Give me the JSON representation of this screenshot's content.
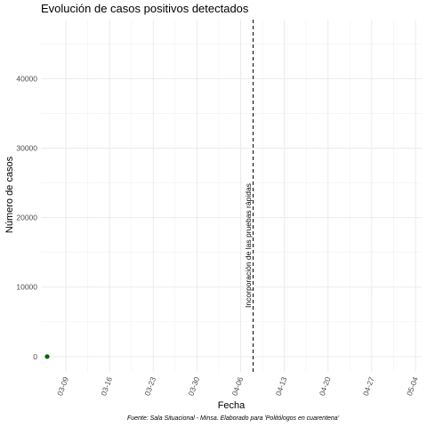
{
  "chart_data": {
    "type": "scatter",
    "title": "Evolución de casos positivos detectados",
    "xlabel": "Fecha",
    "ylabel": "Número de casos",
    "caption": "Fuente: Sala Situacional - Minsa. Elaborado para 'Politólogos en cuarentena'",
    "x_ticks": [
      "03-09",
      "03-16",
      "03-23",
      "03-30",
      "04-06",
      "04-13",
      "04-20",
      "04-27",
      "05-04"
    ],
    "x_tick_dates": [
      "2020-03-09",
      "2020-03-16",
      "2020-03-23",
      "2020-03-30",
      "2020-04-06",
      "2020-04-13",
      "2020-04-20",
      "2020-04-27",
      "2020-05-04"
    ],
    "xlim": [
      "2020-03-05",
      "2020-05-05"
    ],
    "y_ticks": [
      0,
      10000,
      20000,
      30000,
      40000
    ],
    "ylim": [
      -2200,
      48500
    ],
    "series": [
      {
        "color": "#006400",
        "points": [
          {
            "x": "2020-03-06",
            "y": 1
          }
        ]
      }
    ],
    "vline": {
      "x": "2020-04-08",
      "style": "dashed",
      "label": "Incorporación de las pruebas rápidas"
    },
    "grid": true,
    "theme": "minimal"
  }
}
